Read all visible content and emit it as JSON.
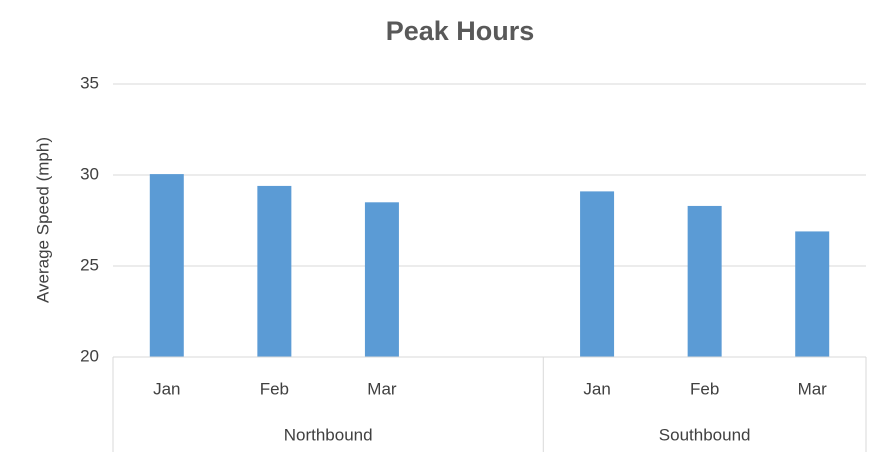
{
  "chart_data": {
    "type": "bar",
    "title": "Peak Hours",
    "y_label": "Average Speed (mph)",
    "categories": [
      "Jan",
      "Feb",
      "Mar",
      null,
      "Jan",
      "Feb",
      "Mar"
    ],
    "values": [
      30.05,
      29.4,
      28.5,
      null,
      29.1,
      28.3,
      26.9
    ],
    "groups": [
      {
        "label": "Northbound",
        "count": 4
      },
      {
        "label": "Southbound",
        "count": 3
      }
    ],
    "color": "#5b9bd5",
    "ylim": [
      20,
      35
    ],
    "yticks": [
      20,
      25,
      30,
      35
    ],
    "grid": true
  }
}
